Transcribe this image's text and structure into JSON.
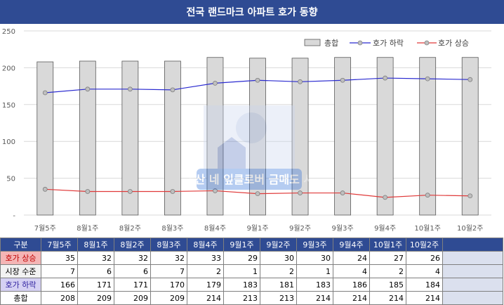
{
  "title": "전국 랜드마크 아파트 호가 동향",
  "colors": {
    "header_bg": "#2f4b93",
    "bar_fill": "#d9d9d9",
    "fall_line": "#2b2bd0",
    "rise_line": "#e03a3a"
  },
  "watermark_text": "부동산 네 잎클로버 금매도 사자",
  "chart_data": {
    "type": "bar",
    "categories": [
      "7월5주",
      "8월1주",
      "8월2주",
      "8월3주",
      "8월4주",
      "9월1주",
      "9월2주",
      "9월3주",
      "9월4주",
      "10월1주",
      "10월2주"
    ],
    "series": [
      {
        "name": "총합",
        "type": "bar",
        "values": [
          208,
          209,
          209,
          209,
          214,
          213,
          213,
          214,
          214,
          214,
          214
        ]
      },
      {
        "name": "호가 하락",
        "type": "line",
        "values": [
          166,
          171,
          171,
          170,
          179,
          183,
          181,
          183,
          186,
          185,
          184
        ]
      },
      {
        "name": "호가 상승",
        "type": "line",
        "values": [
          35,
          32,
          32,
          32,
          33,
          29,
          30,
          30,
          24,
          27,
          26
        ]
      }
    ],
    "ylim": [
      0,
      250
    ],
    "yticks": [
      "-",
      "50",
      "100",
      "150",
      "200",
      "250"
    ],
    "grid": true,
    "legend_position": "top-right"
  },
  "table": {
    "corner_label": "구분",
    "columns": [
      "7월5주",
      "8월1주",
      "8월2주",
      "8월3주",
      "8월4주",
      "9월1주",
      "9월2주",
      "9월3주",
      "9월4주",
      "10월1주",
      "10월2주"
    ],
    "rows": [
      {
        "label": "호가 상승",
        "values": [
          "35",
          "32",
          "32",
          "32",
          "33",
          "29",
          "30",
          "30",
          "24",
          "27",
          "26"
        ]
      },
      {
        "label": "시장 수준",
        "values": [
          "7",
          "6",
          "6",
          "7",
          "2",
          "1",
          "2",
          "1",
          "4",
          "2",
          "4"
        ]
      },
      {
        "label": "호가 하락",
        "values": [
          "166",
          "171",
          "171",
          "170",
          "179",
          "183",
          "181",
          "183",
          "186",
          "185",
          "184"
        ]
      },
      {
        "label": "총합",
        "values": [
          "208",
          "209",
          "209",
          "209",
          "214",
          "213",
          "213",
          "214",
          "214",
          "214",
          "214"
        ]
      }
    ]
  }
}
